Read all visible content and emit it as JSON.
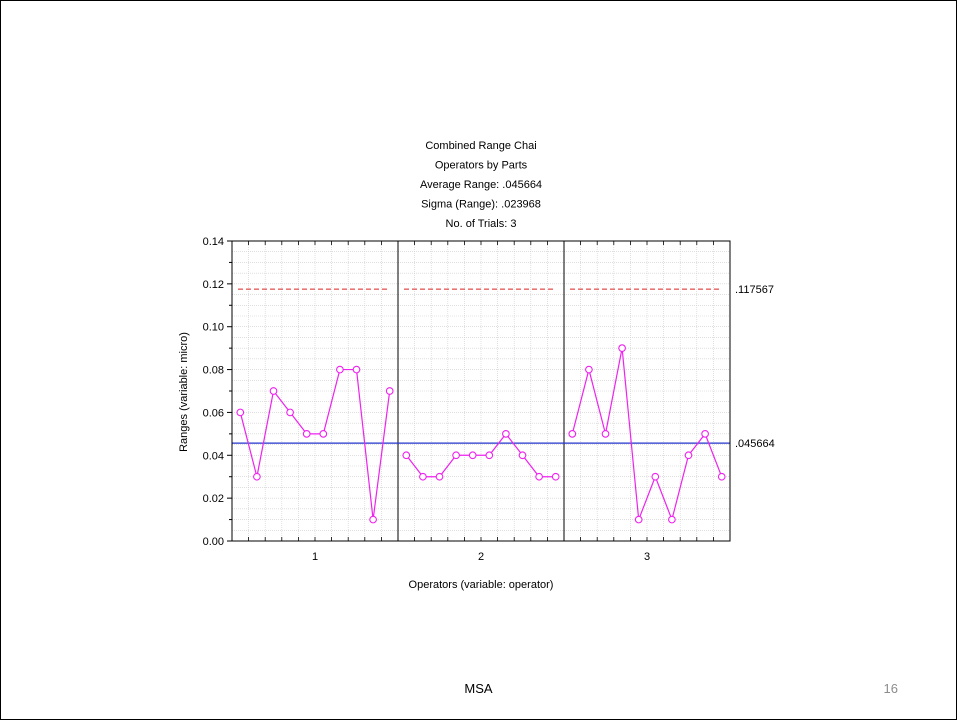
{
  "chart_data": {
    "type": "line",
    "title_lines": [
      "Combined Range Chai",
      "Operators by Parts",
      "Average Range: .045664",
      "Sigma (Range): .023968",
      "No. of Trials: 3"
    ],
    "xlabel": "Operators (variable: operator)",
    "ylabel": "Ranges (variable: micro)",
    "ylim": [
      0,
      0.14
    ],
    "y_ticks": [
      "0.00",
      "0.02",
      "0.04",
      "0.06",
      "0.08",
      "0.10",
      "0.12",
      "0.14"
    ],
    "grid": true,
    "groups": [
      {
        "label": "1",
        "values": [
          0.06,
          0.03,
          0.07,
          0.06,
          0.05,
          0.05,
          0.08,
          0.08,
          0.01,
          0.07
        ]
      },
      {
        "label": "2",
        "values": [
          0.04,
          0.03,
          0.03,
          0.04,
          0.04,
          0.04,
          0.05,
          0.04,
          0.03,
          0.03
        ]
      },
      {
        "label": "3",
        "values": [
          0.05,
          0.08,
          0.05,
          0.09,
          0.01,
          0.03,
          0.01,
          0.04,
          0.05,
          0.03
        ]
      }
    ],
    "ucl": {
      "value": 0.117567,
      "label": ".117567",
      "color": "#dd2222"
    },
    "center_line": {
      "value": 0.045664,
      "label": ".045664",
      "color": "#2233cc"
    },
    "series_color": "#ee22ee"
  },
  "footer": {
    "label": "MSA",
    "page_number": "16"
  }
}
